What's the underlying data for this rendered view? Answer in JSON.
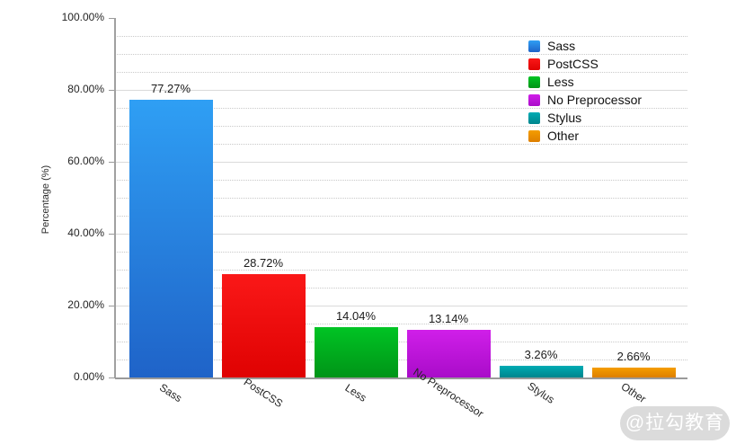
{
  "chart_data": {
    "type": "bar",
    "categories": [
      "Sass",
      "PostCSS",
      "Less",
      "No Preprocessor",
      "Stylus",
      "Other"
    ],
    "values": [
      77.27,
      28.72,
      14.04,
      13.14,
      3.26,
      2.66
    ],
    "value_labels": [
      "77.27%",
      "28.72%",
      "14.04%",
      "13.14%",
      "3.26%",
      "2.66%"
    ],
    "colors": [
      {
        "top": "#2f9ff4",
        "bottom": "#1f63c8"
      },
      {
        "top": "#fa1818",
        "bottom": "#df0202"
      },
      {
        "top": "#00c424",
        "bottom": "#009417"
      },
      {
        "top": "#d01fe9",
        "bottom": "#a90cc9"
      },
      {
        "top": "#00abb4",
        "bottom": "#00858c"
      },
      {
        "top": "#f59d00",
        "bottom": "#dd7f00"
      }
    ],
    "title": "",
    "xlabel": "",
    "ylabel": "Percentage (%)",
    "ylim": [
      0,
      100
    ],
    "ytick_labels": [
      "0.00%",
      "20.00%",
      "40.00%",
      "60.00%",
      "80.00%",
      "100.00%"
    ],
    "major_grid_step": 20,
    "minor_grid_step": 5,
    "grid": "major-solid-minor-dotted",
    "legend": {
      "position": "top-right",
      "items": [
        {
          "label": "Sass",
          "color": {
            "top": "#2f9ff4",
            "bottom": "#1f63c8"
          }
        },
        {
          "label": "PostCSS",
          "color": {
            "top": "#fa1818",
            "bottom": "#df0202"
          }
        },
        {
          "label": "Less",
          "color": {
            "top": "#00c424",
            "bottom": "#009417"
          }
        },
        {
          "label": "No Preprocessor",
          "color": {
            "top": "#d01fe9",
            "bottom": "#a90cc9"
          }
        },
        {
          "label": "Stylus",
          "color": {
            "top": "#00abb4",
            "bottom": "#00858c"
          }
        },
        {
          "label": "Other",
          "color": {
            "top": "#f59d00",
            "bottom": "#dd7f00"
          }
        }
      ]
    }
  },
  "watermark": {
    "text": "@拉勾教育"
  }
}
